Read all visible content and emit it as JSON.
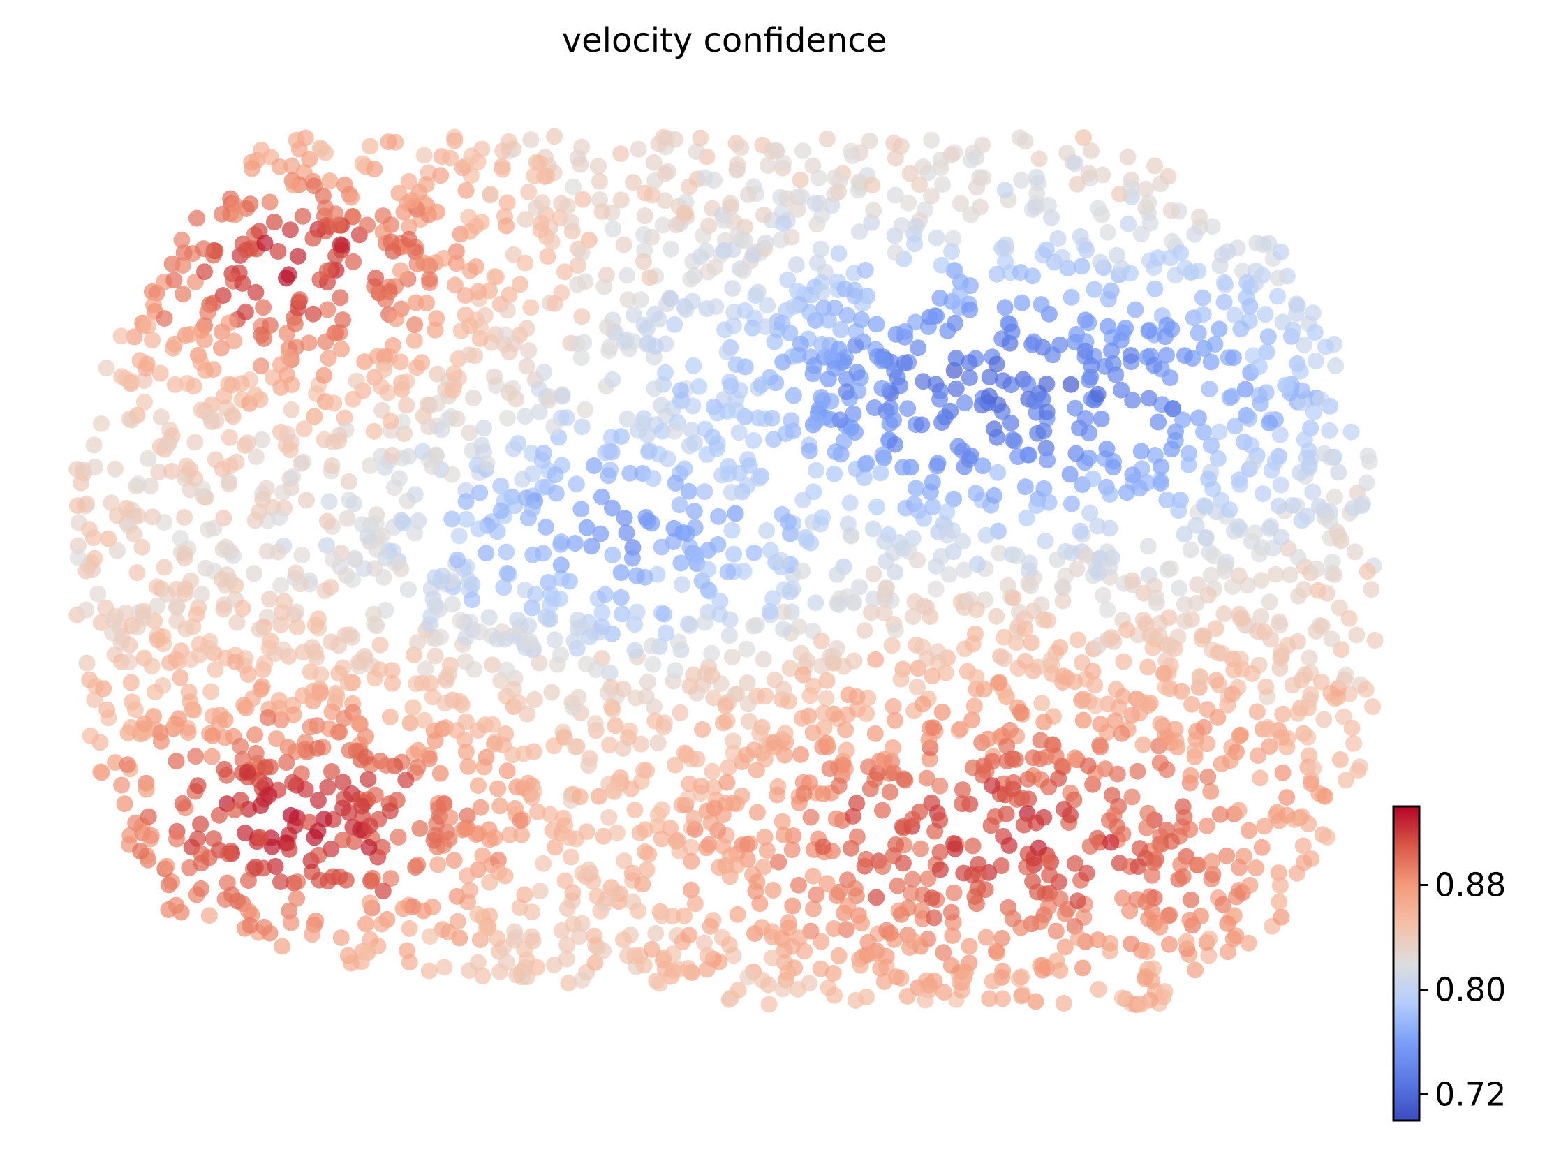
{
  "chart_data": {
    "type": "scatter",
    "title": "velocity confidence",
    "xlabel": "",
    "ylabel": "",
    "axes_visible": false,
    "point_count_estimate": 3500,
    "colorbar": {
      "colormap": "coolwarm",
      "range": [
        0.7,
        0.94
      ],
      "ticks": [
        0.72,
        0.8,
        0.88
      ],
      "tick_labels": [
        "0.72",
        "0.80",
        "0.88"
      ],
      "low_color": "#3b4cc0",
      "mid_color": "#dddddd",
      "high_color": "#b40426"
    },
    "regions": [
      {
        "name": "upper-left",
        "value_range": [
          0.87,
          0.94
        ]
      },
      {
        "name": "center-left",
        "value_range": [
          0.82,
          0.88
        ]
      },
      {
        "name": "upper-right",
        "value_range": [
          0.7,
          0.8
        ]
      },
      {
        "name": "lower-right",
        "value_range": [
          0.86,
          0.93
        ]
      },
      {
        "name": "lower-left",
        "value_range": [
          0.9,
          0.94
        ]
      }
    ]
  }
}
